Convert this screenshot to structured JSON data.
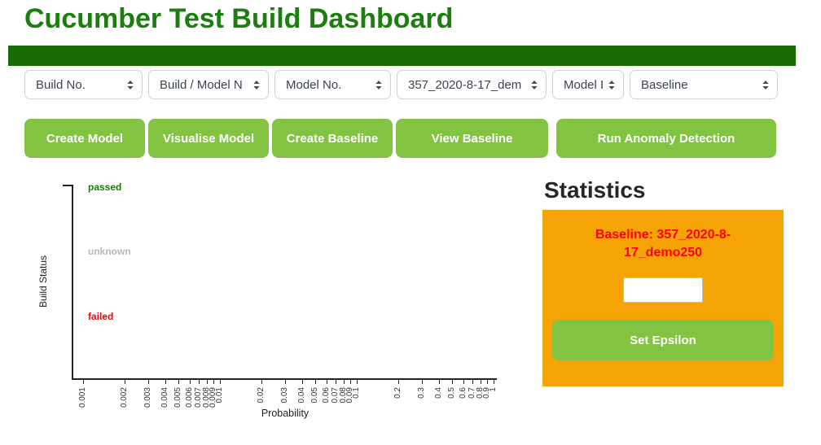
{
  "page": {
    "title": "Cucumber Test Build Dashboard"
  },
  "colors": {
    "title_green": "#1b7e0e",
    "navbar_green": "#186a04",
    "button_green": "#82c341",
    "panel_orange": "#f5a405",
    "baseline_red": "#ff0000",
    "passed_green": "#1a7a0a",
    "unknown_gray": "#b8b8b8",
    "failed_red": "#ff0000"
  },
  "filters": [
    {
      "label": "Build No."
    },
    {
      "label": "Build / Model N"
    },
    {
      "label": "Model No."
    },
    {
      "label": "357_2020-8-17_dem"
    },
    {
      "label": "Model I"
    },
    {
      "label": "Baseline"
    }
  ],
  "actions": [
    {
      "label": "Create Model"
    },
    {
      "label": "Visualise Model"
    },
    {
      "label": "Create Baseline"
    },
    {
      "label": "View Baseline"
    },
    {
      "label": "Run Anomaly Detection"
    }
  ],
  "chart_data": {
    "type": "scatter",
    "title": "",
    "xlabel": "Probability",
    "ylabel": "Build Status",
    "x_scale": "log",
    "xlim": [
      0.001,
      1
    ],
    "x_ticks": [
      0.001,
      0.002,
      0.003,
      0.004,
      0.005,
      0.006,
      0.007,
      0.008,
      0.009,
      0.01,
      0.02,
      0.03,
      0.04,
      0.05,
      0.06,
      0.07,
      0.08,
      0.09,
      0.1,
      0.2,
      0.3,
      0.4,
      0.5,
      0.6,
      0.7,
      0.8,
      0.9,
      1
    ],
    "y_categories": [
      {
        "label": "passed",
        "color": "#1a7a0a"
      },
      {
        "label": "unknown",
        "color": "#b8b8b8"
      },
      {
        "label": "failed",
        "color": "#ff0000"
      }
    ],
    "points": [],
    "grid": false,
    "legend": false
  },
  "statistics": {
    "heading": "Statistics",
    "baseline_label": "Baseline: 357_2020-8-17_demo250",
    "epsilon_input_value": "",
    "epsilon_input_placeholder": "",
    "set_epsilon_label": "Set Epsilon"
  }
}
